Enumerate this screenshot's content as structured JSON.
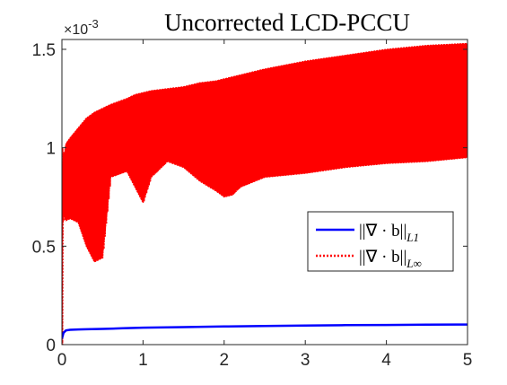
{
  "chart_data": {
    "type": "line",
    "title": "Uncorrected LCD-PCCU",
    "exponent_label": "×10",
    "exponent_power": "-3",
    "xlabel": "",
    "ylabel": "",
    "xlim": [
      0,
      5
    ],
    "ylim": [
      0,
      1.55
    ],
    "x_ticks": [
      0,
      1,
      2,
      3,
      4,
      5
    ],
    "x_tick_labels": [
      "0",
      "1",
      "2",
      "3",
      "4",
      "5"
    ],
    "y_ticks": [
      0,
      0.5,
      1,
      1.5
    ],
    "y_tick_labels": [
      "0",
      "0.5",
      "1",
      "1.5"
    ],
    "grid": false,
    "legend_position": "right",
    "series": [
      {
        "name": "||∇ · b||",
        "subscript": "L1",
        "color": "#0000ff",
        "style": "solid",
        "x": [
          0,
          0.02,
          0.05,
          0.1,
          0.2,
          0.3,
          0.5,
          0.75,
          1.0,
          1.5,
          2.0,
          2.5,
          3.0,
          3.5,
          4.0,
          4.5,
          5.0
        ],
        "values": [
          0.03,
          0.06,
          0.072,
          0.075,
          0.077,
          0.078,
          0.08,
          0.083,
          0.086,
          0.089,
          0.092,
          0.095,
          0.097,
          0.099,
          0.1,
          0.101,
          0.102
        ]
      },
      {
        "name": "||∇ · b||",
        "subscript": "L∞",
        "color": "#ff0000",
        "style": "dotted",
        "x": [
          0,
          0.01,
          0.02,
          0.05,
          0.1,
          0.2,
          0.3,
          0.4,
          0.5,
          0.6,
          0.8,
          0.9,
          1.0,
          1.1,
          1.3,
          1.5,
          1.7,
          1.9,
          2.0,
          2.1,
          2.2,
          2.5,
          3.0,
          3.5,
          4.0,
          4.5,
          5.0
        ],
        "upper": [
          0.8,
          1.0,
          0.95,
          1.02,
          1.05,
          1.1,
          1.15,
          1.18,
          1.2,
          1.22,
          1.25,
          1.27,
          1.28,
          1.29,
          1.3,
          1.31,
          1.33,
          1.34,
          1.35,
          1.36,
          1.37,
          1.4,
          1.44,
          1.47,
          1.5,
          1.52,
          1.53
        ],
        "lower": [
          0.0,
          0.6,
          0.65,
          0.63,
          0.64,
          0.62,
          0.5,
          0.42,
          0.44,
          0.85,
          0.88,
          0.8,
          0.72,
          0.85,
          0.93,
          0.9,
          0.83,
          0.78,
          0.75,
          0.76,
          0.8,
          0.85,
          0.87,
          0.9,
          0.92,
          0.93,
          0.95
        ]
      }
    ]
  }
}
